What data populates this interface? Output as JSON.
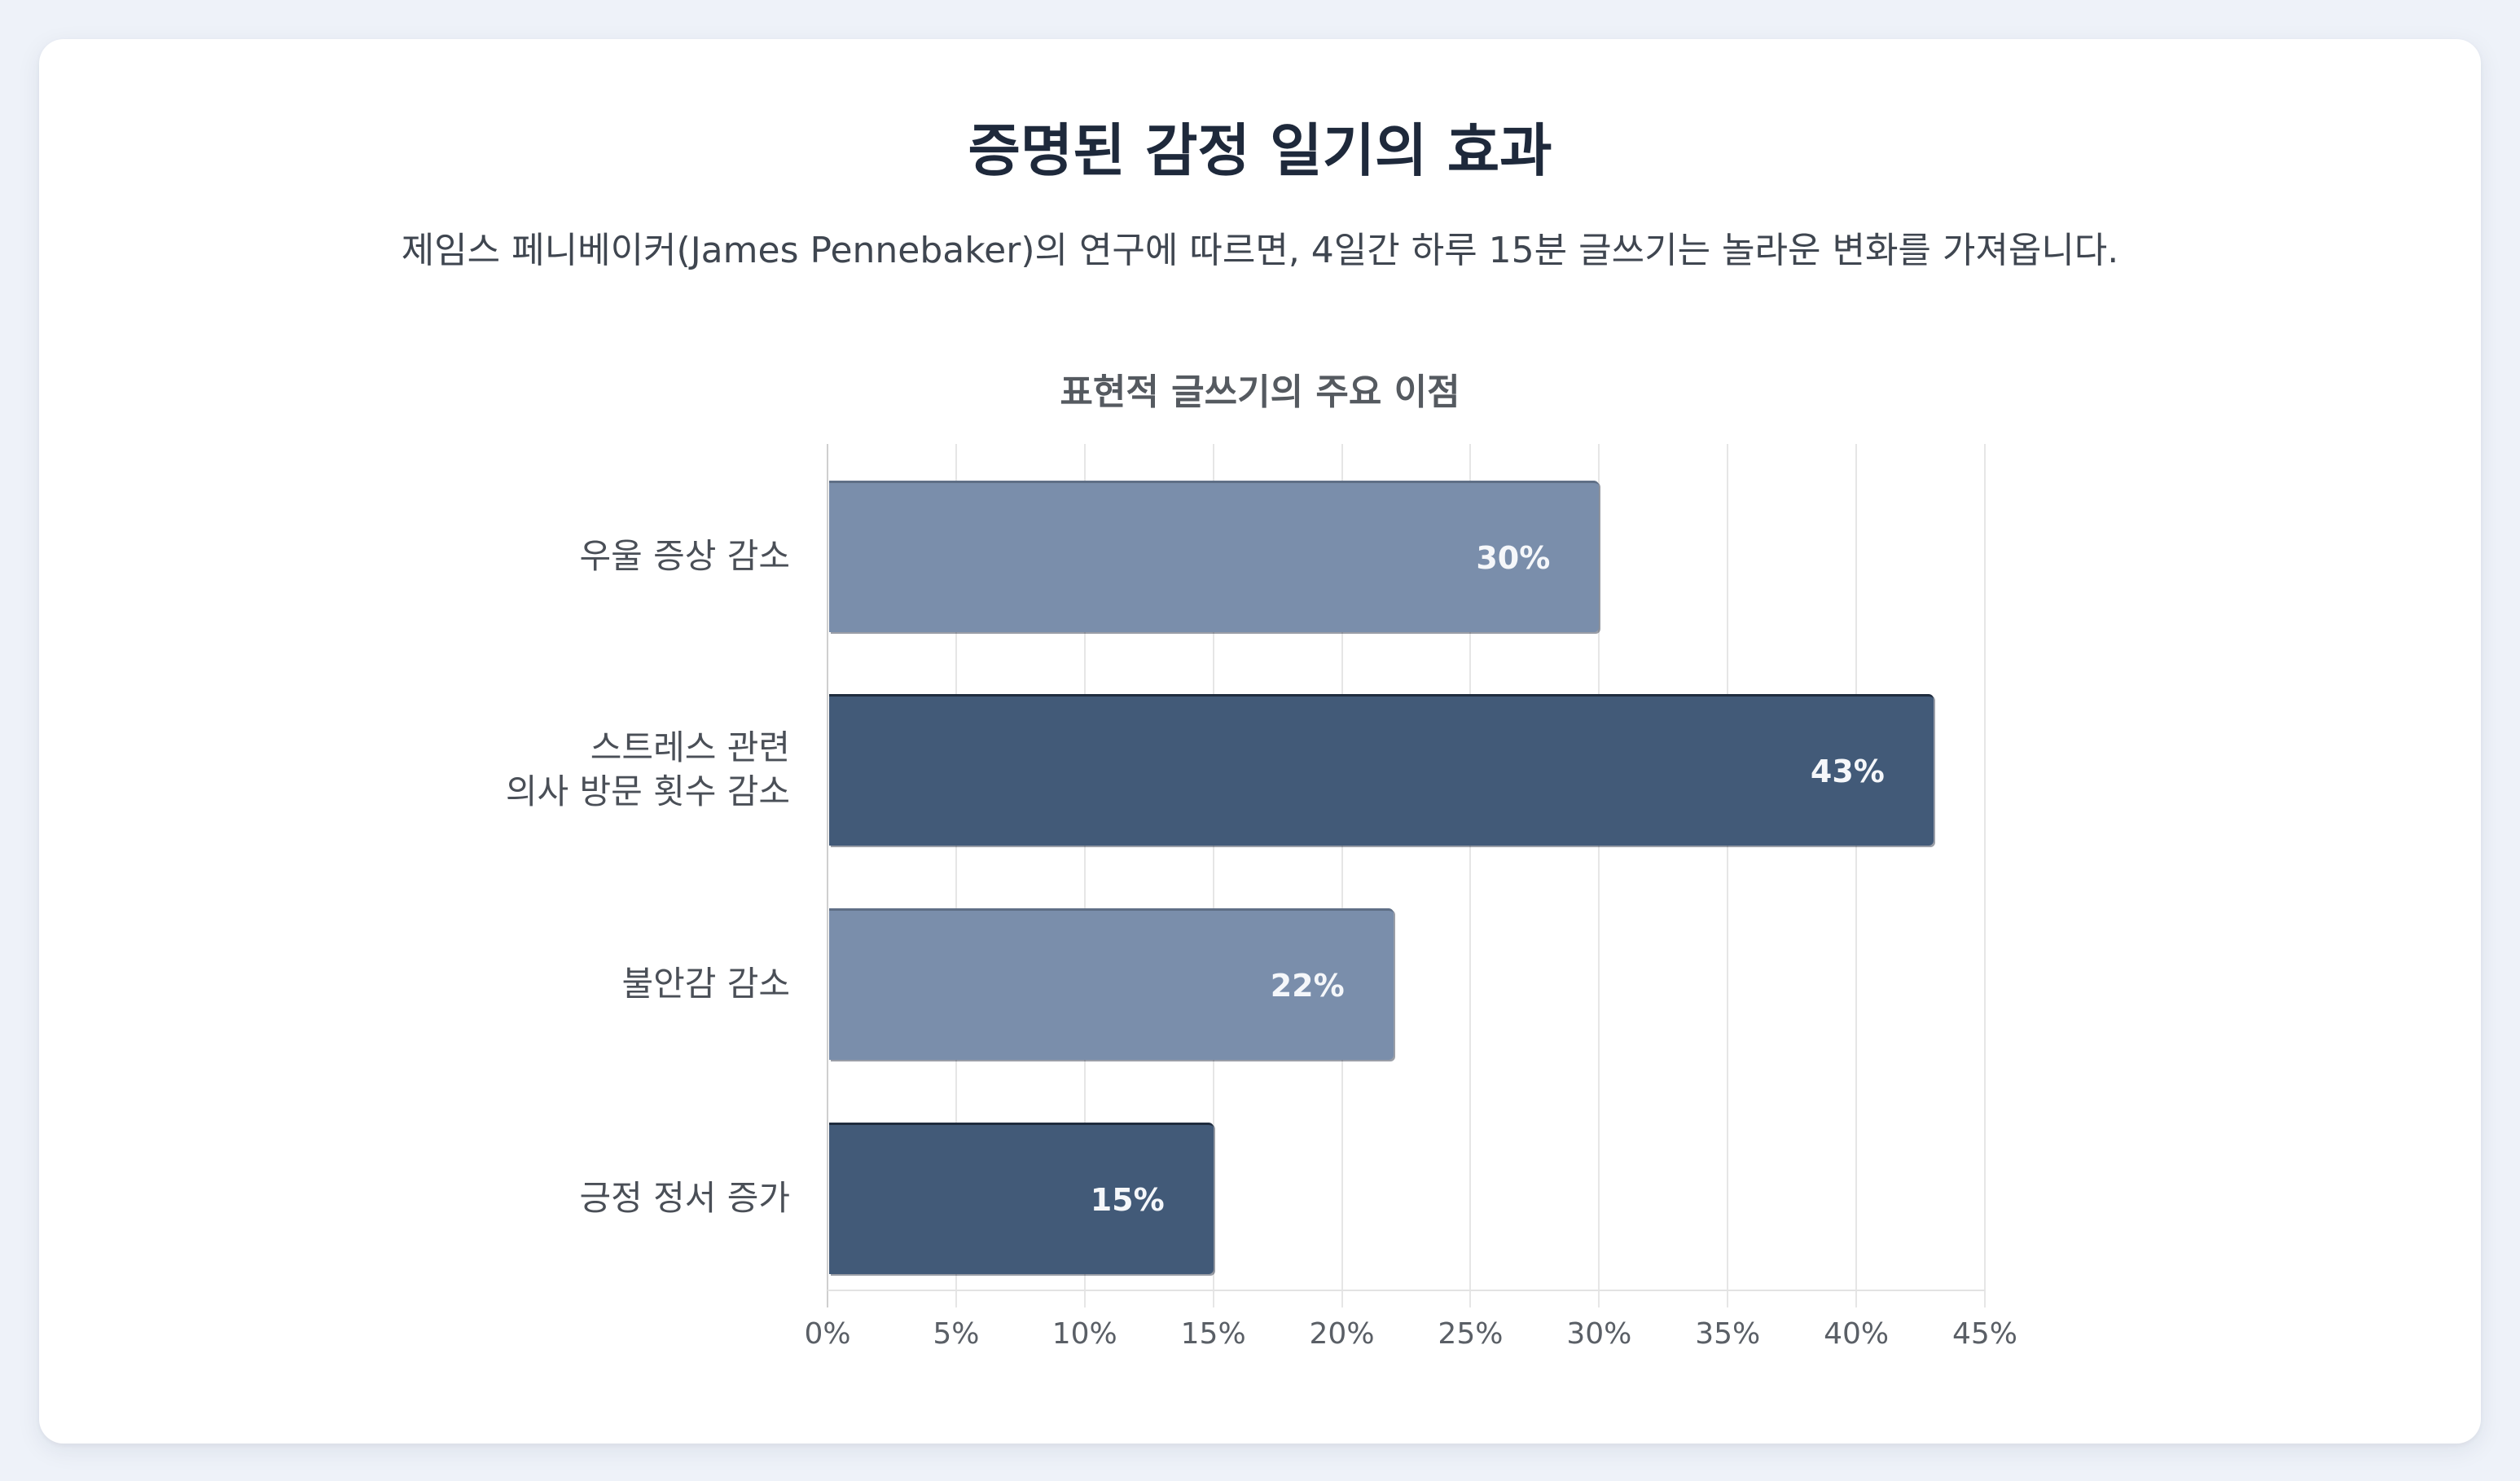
{
  "page": {
    "title": "증명된 감정 일기의 효과",
    "subtitle": "제임스 페니베이커(James Pennebaker)의 연구에 따르면, 4일간 하루 15분 글쓰기는 놀라운 변화를 가져옵니다."
  },
  "colors": {
    "background": "#EEF2F9",
    "card": "#FFFFFF",
    "bar_light": "#7A8EAB",
    "bar_dark": "#425A78",
    "title": "#1E293B"
  },
  "chart": {
    "title": "표현적 글쓰기의 주요 이점",
    "bars": [
      {
        "label_lines": [
          "우울 증상 감소"
        ],
        "value": 30,
        "value_label": "30%",
        "style": "light"
      },
      {
        "label_lines": [
          "스트레스 관련",
          "의사 방문 횟수 감소"
        ],
        "value": 43,
        "value_label": "43%",
        "style": "dark"
      },
      {
        "label_lines": [
          "불안감 감소"
        ],
        "value": 22,
        "value_label": "22%",
        "style": "light"
      },
      {
        "label_lines": [
          "긍정 정서 증가"
        ],
        "value": 15,
        "value_label": "15%",
        "style": "dark"
      }
    ],
    "x_ticks": [
      "0%",
      "5%",
      "10%",
      "15%",
      "20%",
      "25%",
      "30%",
      "35%",
      "40%",
      "45%"
    ]
  },
  "chart_data": {
    "type": "bar",
    "orientation": "horizontal",
    "title": "표현적 글쓰기의 주요 이점",
    "categories": [
      "우울 증상 감소",
      "스트레스 관련 의사 방문 횟수 감소",
      "불안감 감소",
      "긍정 정서 증가"
    ],
    "values": [
      30,
      43,
      22,
      15
    ],
    "data_labels": [
      "30%",
      "43%",
      "22%",
      "15%"
    ],
    "xlabel": "",
    "ylabel": "",
    "xlim": [
      0,
      45
    ],
    "x_tick_labels": [
      "0%",
      "5%",
      "10%",
      "15%",
      "20%",
      "25%",
      "30%",
      "35%",
      "40%",
      "45%"
    ],
    "grid": "vertical",
    "legend": "none",
    "bar_colors": [
      "#7A8EAB",
      "#425A78",
      "#7A8EAB",
      "#425A78"
    ]
  }
}
